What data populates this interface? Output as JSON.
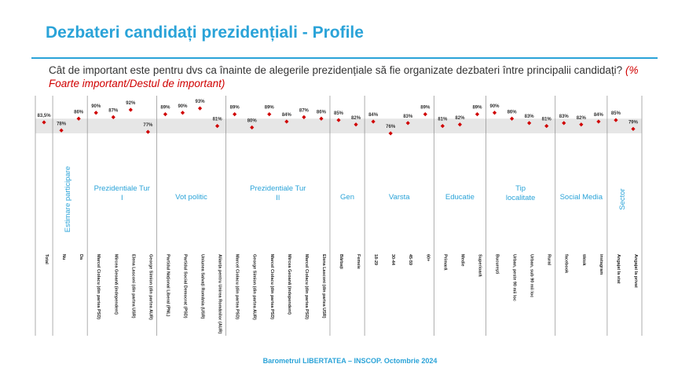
{
  "title": "Dezbateri candidați prezidențiali - Profile",
  "question": "Cât de important este pentru dvs ca înainte de alegerile prezidențiale să fie organizate dezbateri între principalii candidați?",
  "question_note": "(% Foarte important/Destul de important)",
  "footer": "Barometrul LIBERTATEA – INSCOP. Octombrie 2024",
  "colors": {
    "accent": "#2aa3d8",
    "marker": "#d00000",
    "band": "#e6e6e6",
    "text": "#333333"
  },
  "chart_data": {
    "type": "scatter",
    "ylim": [
      60,
      100
    ],
    "band": [
      76,
      86
    ],
    "categories": [
      "Total",
      "Nu",
      "Da",
      "Marcel Ciolacu (din partea PSD)",
      "Mircea Geoană (independent)",
      "Elena Lasconi (din partea USR)",
      "George Simion (din partea AUR)",
      "Partidul Național Liberal (PNL)",
      "Partidul Social Democrat (PSD)",
      "Uniunea Salvați România (USR)",
      "Alianța pentru Unirea Românilor (AUR)",
      "Marcel Ciolacu (din partea PSD)",
      "George Simion (din partea AUR)",
      "Marcel Ciolacu (din partea PSD)",
      "Mircea Geoană (independent)",
      "Marcel Ciolacu (din partea PSD)",
      "Elena Lasconi (din partea USR)",
      "Bărbați",
      "Femeie",
      "18-29",
      "30-44",
      "45-59",
      "60+",
      "Primară",
      "Medie",
      "Superioară",
      "București",
      "Urban, peste 90 mii loc",
      "Urban, sub 90 mii loc",
      "Rural",
      "facebook",
      "tiktok",
      "instagram",
      "Angajat la stat",
      "Angajat la privat"
    ],
    "values": [
      83.5,
      78,
      86,
      90,
      87,
      92,
      77,
      89,
      90,
      93,
      81,
      89,
      80,
      89,
      84,
      87,
      86,
      85,
      82,
      84,
      76,
      83,
      89,
      81,
      82,
      89,
      90,
      86,
      83,
      81,
      83,
      82,
      84,
      85,
      79
    ],
    "labels": [
      "83,5%",
      "78%",
      "86%",
      "90%",
      "87%",
      "92%",
      "77%",
      "89%",
      "90%",
      "93%",
      "81%",
      "89%",
      "80%",
      "89%",
      "84%",
      "87%",
      "86%",
      "85%",
      "82%",
      "84%",
      "76%",
      "83%",
      "89%",
      "81%",
      "82%",
      "89%",
      "90%",
      "86%",
      "83%",
      "81%",
      "83%",
      "82%",
      "84%",
      "85%",
      "79%"
    ],
    "groups": [
      {
        "label": "",
        "start": 0,
        "end": 0,
        "vertical": false
      },
      {
        "label": "Estimare participare",
        "start": 1,
        "end": 2,
        "vertical": true
      },
      {
        "label": "Prezidentiale Tur I",
        "start": 3,
        "end": 6,
        "vertical": false
      },
      {
        "label": "Vot politic",
        "start": 7,
        "end": 10,
        "vertical": false
      },
      {
        "label": "Prezidentiale Tur II",
        "start": 11,
        "end": 16,
        "vertical": false
      },
      {
        "label": "Gen",
        "start": 17,
        "end": 18,
        "vertical": false
      },
      {
        "label": "Varsta",
        "start": 19,
        "end": 22,
        "vertical": false
      },
      {
        "label": "Educatie",
        "start": 23,
        "end": 25,
        "vertical": false
      },
      {
        "label": "Tip localitate",
        "start": 26,
        "end": 29,
        "vertical": false
      },
      {
        "label": "Social Media",
        "start": 30,
        "end": 32,
        "vertical": false
      },
      {
        "label": "Sector",
        "start": 33,
        "end": 34,
        "vertical": true
      }
    ]
  }
}
